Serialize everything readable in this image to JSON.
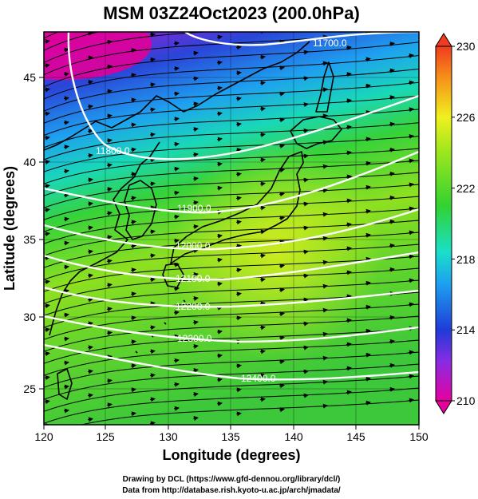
{
  "title": "MSM 03Z24Oct2023 (200.0hPa)",
  "x_axis": {
    "label": "Longitude (degrees)",
    "range": [
      120,
      150
    ],
    "ticks": [
      "120",
      "125",
      "130",
      "135",
      "140",
      "145",
      "150"
    ]
  },
  "y_axis": {
    "label": "Latitude  (degrees)",
    "range": [
      22.4,
      47.6
    ],
    "ticks": [
      "25",
      "30",
      "35",
      "40",
      "45"
    ]
  },
  "colorbar": {
    "range": [
      210,
      230
    ],
    "ticks": [
      "210",
      "214",
      "218",
      "222",
      "226",
      "230"
    ],
    "colors": [
      "#e6009e",
      "#8a2be2",
      "#1e3cd8",
      "#1ea0f0",
      "#19e0c8",
      "#32d232",
      "#9be61e",
      "#f0f01e",
      "#f59b19",
      "#f03c1e"
    ]
  },
  "contours": [
    {
      "label": "11700.0"
    },
    {
      "label": "11800.0"
    },
    {
      "label": "11900.0"
    },
    {
      "label": "12000.0"
    },
    {
      "label": "12100.0"
    },
    {
      "label": "12200.0"
    },
    {
      "label": "12300.0"
    },
    {
      "label": "12400.0"
    }
  ],
  "credits": [
    "Drawing by DCL (https://www.gfd-dennou.org/library/dcl/)",
    "Data from http://database.rish.kyoto-u.ac.jp/arch/jmadata/"
  ]
}
